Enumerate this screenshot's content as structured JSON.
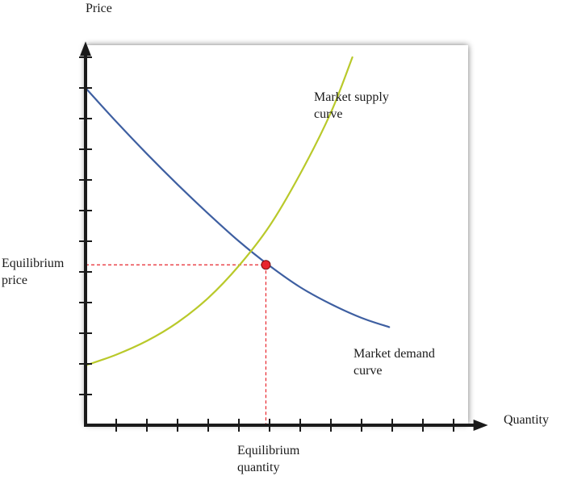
{
  "chart_data": {
    "type": "line",
    "title": "",
    "xlabel": "Quantity",
    "ylabel": "Price",
    "grid": false,
    "xlim": [
      0,
      12.7
    ],
    "ylim": [
      0,
      12.2
    ],
    "x_ticks": [
      1,
      2,
      3,
      4,
      5,
      6,
      7,
      8,
      9,
      10,
      11,
      12
    ],
    "y_ticks": [
      1,
      2,
      3,
      4,
      5,
      6,
      7,
      8,
      9,
      10,
      11,
      12
    ],
    "series": [
      {
        "name": "Market demand curve",
        "color": "#3e5fa1",
        "points": [
          [
            0.0,
            11.0
          ],
          [
            1.0,
            9.9
          ],
          [
            2.0,
            8.85
          ],
          [
            3.0,
            7.85
          ],
          [
            4.0,
            6.9
          ],
          [
            5.0,
            6.0
          ],
          [
            6.0,
            5.2
          ],
          [
            7.0,
            4.5
          ],
          [
            8.0,
            3.95
          ],
          [
            9.0,
            3.5
          ],
          [
            9.9,
            3.2
          ]
        ]
      },
      {
        "name": "Market supply curve",
        "color": "#b9c92a",
        "points": [
          [
            0.0,
            1.95
          ],
          [
            1.0,
            2.3
          ],
          [
            2.0,
            2.75
          ],
          [
            3.0,
            3.35
          ],
          [
            4.0,
            4.15
          ],
          [
            5.0,
            5.2
          ],
          [
            6.0,
            6.5
          ],
          [
            7.0,
            8.2
          ],
          [
            8.0,
            10.2
          ],
          [
            8.7,
            12.0
          ]
        ]
      }
    ],
    "equilibrium": {
      "x": 5.88,
      "y": 5.23,
      "color": "#e8262d"
    },
    "annotations": {
      "equilibrium_price": [
        "Equilibrium",
        "price"
      ],
      "equilibrium_quantity": [
        "Equilibrium",
        "quantity"
      ],
      "supply_label": [
        "Market supply",
        "curve"
      ],
      "demand_label": [
        "Market demand",
        "curve"
      ]
    }
  }
}
